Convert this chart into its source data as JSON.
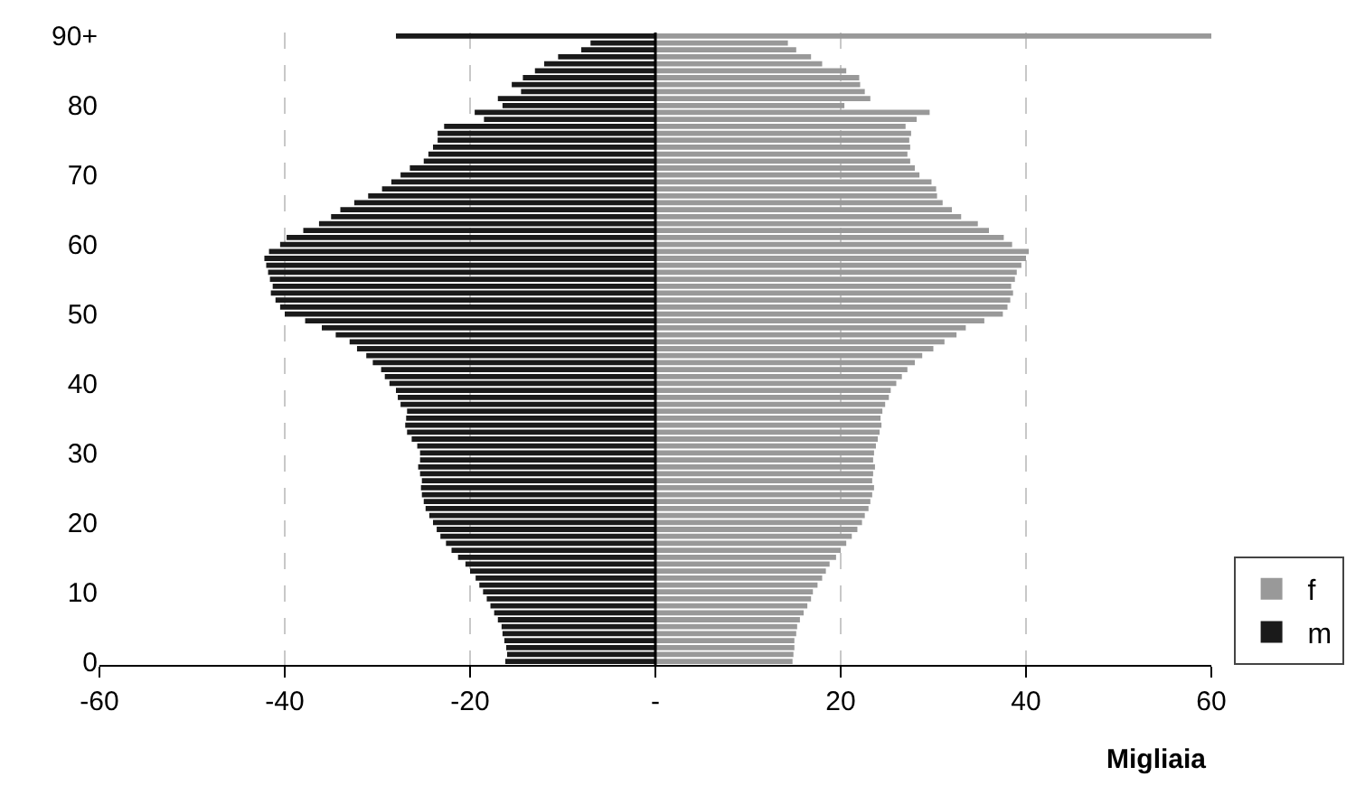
{
  "chart_data": {
    "type": "bar",
    "orientation": "horizontal",
    "stacked": true,
    "xlabel": "Migliaia",
    "categories": [
      "90+",
      null,
      null,
      null,
      null,
      null,
      null,
      null,
      null,
      null,
      "80",
      null,
      null,
      null,
      null,
      null,
      null,
      null,
      null,
      null,
      "70",
      null,
      null,
      null,
      null,
      null,
      null,
      null,
      null,
      null,
      "60",
      null,
      null,
      null,
      null,
      null,
      null,
      null,
      null,
      null,
      "50",
      null,
      null,
      null,
      null,
      null,
      null,
      null,
      null,
      null,
      "40",
      null,
      null,
      null,
      null,
      null,
      null,
      null,
      null,
      null,
      "30",
      null,
      null,
      null,
      null,
      null,
      null,
      null,
      null,
      null,
      "20",
      null,
      null,
      null,
      null,
      null,
      null,
      null,
      null,
      null,
      "10",
      null,
      null,
      null,
      null,
      null,
      null,
      null,
      null,
      null,
      "0"
    ],
    "series": [
      {
        "name": "f",
        "color": "#999999",
        "values": [
          60.0,
          14.3,
          15.2,
          16.8,
          18.0,
          20.6,
          22.0,
          22.1,
          22.6,
          23.2,
          20.4,
          29.6,
          28.2,
          27.0,
          27.6,
          27.4,
          27.5,
          27.2,
          27.5,
          28.0,
          28.5,
          29.8,
          30.3,
          30.4,
          31.0,
          32.0,
          33.0,
          34.8,
          36.0,
          37.6,
          38.5,
          40.3,
          40.0,
          39.5,
          39.0,
          38.8,
          38.4,
          38.6,
          38.3,
          38.0,
          37.5,
          35.5,
          33.5,
          32.5,
          31.2,
          30.0,
          28.8,
          28.0,
          27.2,
          26.6,
          26.0,
          25.4,
          25.2,
          24.8,
          24.5,
          24.3,
          24.4,
          24.2,
          24.0,
          23.8,
          23.6,
          23.5,
          23.7,
          23.5,
          23.4,
          23.6,
          23.4,
          23.2,
          23.0,
          22.6,
          22.3,
          21.8,
          21.2,
          20.6,
          20.0,
          19.5,
          18.8,
          18.4,
          18.0,
          17.5,
          17.0,
          16.8,
          16.4,
          16.0,
          15.6,
          15.3,
          15.2,
          15.0,
          15.0,
          14.9,
          14.8
        ]
      },
      {
        "name": "m",
        "color": "#1a1a1a",
        "values": [
          -28.0,
          -7.0,
          -8.0,
          -10.5,
          -12.0,
          -13.0,
          -14.3,
          -15.5,
          -14.5,
          -17.0,
          -16.5,
          -19.5,
          -18.5,
          -22.8,
          -23.5,
          -23.5,
          -24.0,
          -24.5,
          -25.0,
          -26.5,
          -27.5,
          -28.5,
          -29.5,
          -31.0,
          -32.5,
          -34.0,
          -35.0,
          -36.3,
          -38.0,
          -39.8,
          -40.5,
          -41.7,
          -42.2,
          -42.0,
          -41.8,
          -41.6,
          -41.3,
          -41.5,
          -41.0,
          -40.5,
          -40.0,
          -37.8,
          -36.0,
          -34.5,
          -33.0,
          -32.2,
          -31.2,
          -30.5,
          -29.6,
          -29.2,
          -28.7,
          -28.0,
          -27.8,
          -27.5,
          -26.8,
          -26.9,
          -27.0,
          -26.8,
          -26.3,
          -25.7,
          -25.4,
          -25.4,
          -25.6,
          -25.4,
          -25.2,
          -25.3,
          -25.2,
          -25.0,
          -24.8,
          -24.4,
          -24.0,
          -23.6,
          -23.2,
          -22.6,
          -22.0,
          -21.3,
          -20.5,
          -20.0,
          -19.4,
          -19.0,
          -18.6,
          -18.2,
          -17.8,
          -17.4,
          -17.0,
          -16.6,
          -16.5,
          -16.3,
          -16.1,
          -16.0,
          -16.2
        ]
      }
    ],
    "xlim": [
      -60,
      60
    ],
    "xticks": [
      -60,
      -40,
      -20,
      {
        "value": 0,
        "label": "-"
      },
      20,
      40,
      60
    ],
    "grid": "x",
    "legend": "right"
  }
}
